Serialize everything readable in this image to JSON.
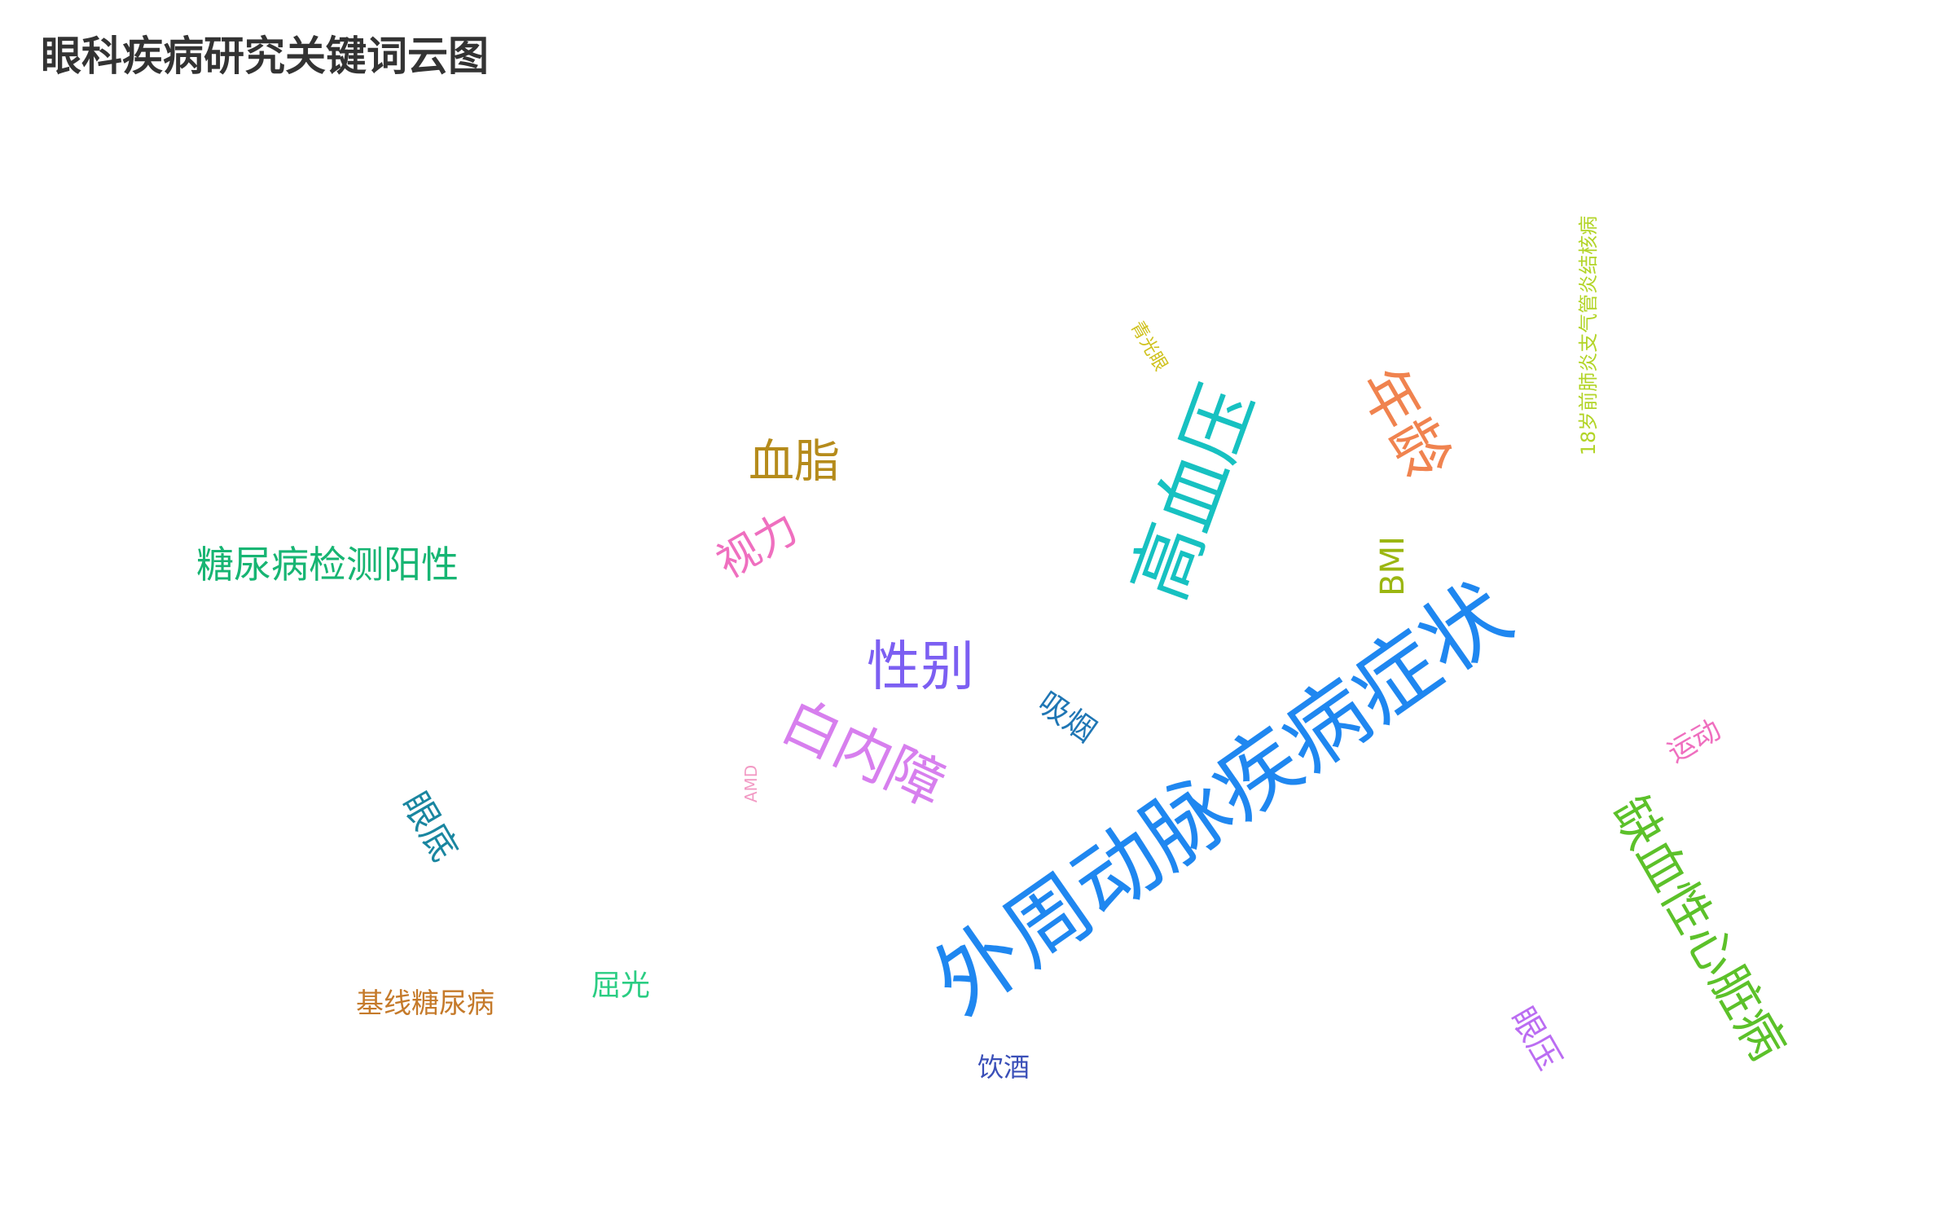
{
  "title": "眼科疾病研究关键词云图",
  "chart_data": {
    "type": "wordcloud",
    "title": "眼科疾病研究关键词云图",
    "words": [
      {
        "text": "外周动脉疾病症状",
        "color": "#1f87f0",
        "rotate": -35
      },
      {
        "text": "高血压",
        "color": "#17c1c1",
        "rotate": -70
      },
      {
        "text": "年龄",
        "color": "#f0834f",
        "rotate": 60
      },
      {
        "text": "缺血性心脏病",
        "color": "#5cc12a",
        "rotate": 60
      },
      {
        "text": "白内障",
        "color": "#d77fee",
        "rotate": 25
      },
      {
        "text": "性别",
        "color": "#7c5ff2",
        "rotate": 0
      },
      {
        "text": "血脂",
        "color": "#b58b1b",
        "rotate": 0
      },
      {
        "text": "糖尿病检测阳性",
        "color": "#17b573",
        "rotate": 0
      },
      {
        "text": "视力",
        "color": "#ef6fbf",
        "rotate": -30
      },
      {
        "text": "眼底",
        "color": "#1a86a0",
        "rotate": 60
      },
      {
        "text": "BMI",
        "color": "#9bb611",
        "rotate": -90
      },
      {
        "text": "吸烟",
        "color": "#1f76b4",
        "rotate": 35
      },
      {
        "text": "眼压",
        "color": "#bb6df2",
        "rotate": 60
      },
      {
        "text": "运动",
        "color": "#ef6fbf",
        "rotate": -30
      },
      {
        "text": "基线糖尿病",
        "color": "#c57a2a",
        "rotate": 0
      },
      {
        "text": "屈光",
        "color": "#2bcd83",
        "rotate": 0
      },
      {
        "text": "饮酒",
        "color": "#3a4fb8",
        "rotate": 0
      },
      {
        "text": "18岁前肺炎支气管炎结核病",
        "color": "#b2d427",
        "rotate": -90
      },
      {
        "text": "青光眼",
        "color": "#cfc11b",
        "rotate": 60
      },
      {
        "text": "AMD",
        "color": "#f29ac4",
        "rotate": -90
      }
    ]
  }
}
